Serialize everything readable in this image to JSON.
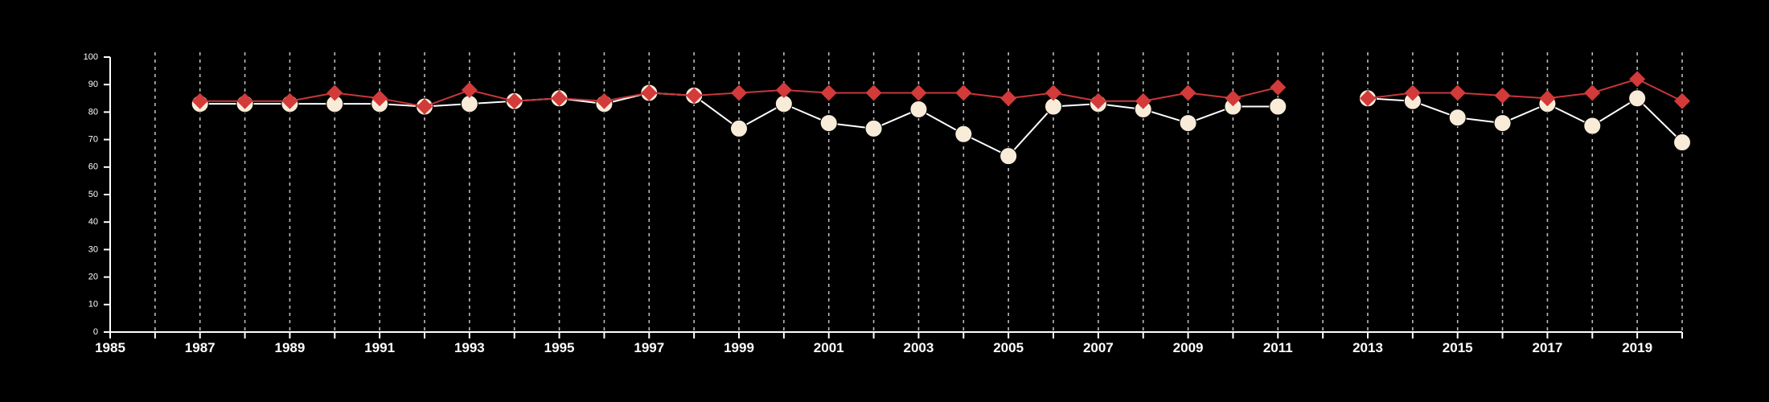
{
  "chart_data": {
    "type": "line",
    "title": "",
    "xlabel": "",
    "ylabel": "",
    "xlim": [
      1985,
      2020
    ],
    "ylim": [
      0,
      100
    ],
    "x_tick_labels": [
      "1985",
      "1987",
      "1989",
      "1991",
      "1993",
      "1995",
      "1997",
      "1999",
      "2001",
      "2003",
      "2005",
      "2007",
      "2009",
      "2011",
      "2013",
      "2015",
      "2017",
      "2019"
    ],
    "y_tick_labels": [
      "0",
      "10",
      "20",
      "30",
      "40",
      "50",
      "60",
      "70",
      "80",
      "90",
      "100"
    ],
    "vertical_gridlines": "dashed, every year",
    "horizontal_gridlines": false,
    "legend": "none",
    "background_color": "#000000",
    "axis_color": "#ffffff",
    "grid_color": "#bbbbbb",
    "series": [
      {
        "marker": "circle",
        "line_color": "#ffffff",
        "marker_fill": "#f8ecd9",
        "x": [
          1987,
          1988,
          1989,
          1990,
          1991,
          1992,
          1993,
          1994,
          1995,
          1996,
          1997,
          1998,
          1999,
          2000,
          2001,
          2002,
          2003,
          2004,
          2005,
          2006,
          2007,
          2008,
          2009,
          2010,
          2011,
          2013,
          2014,
          2015,
          2016,
          2017,
          2018,
          2019,
          2020
        ],
        "values": [
          83,
          83,
          83,
          83,
          83,
          82,
          83,
          84,
          85,
          83,
          87,
          86,
          74,
          83,
          76,
          74,
          81,
          72,
          64,
          82,
          83,
          81,
          76,
          82,
          82,
          85,
          84,
          78,
          76,
          83,
          75,
          85,
          69
        ]
      },
      {
        "marker": "diamond",
        "line_color": "#c8363a",
        "marker_fill": "#d33a3a",
        "x": [
          1987,
          1988,
          1989,
          1990,
          1991,
          1992,
          1993,
          1994,
          1995,
          1996,
          1997,
          1998,
          1999,
          2000,
          2001,
          2002,
          2003,
          2004,
          2005,
          2006,
          2007,
          2008,
          2009,
          2010,
          2011,
          2013,
          2014,
          2015,
          2016,
          2017,
          2018,
          2019,
          2020
        ],
        "values": [
          84,
          84,
          84,
          87,
          85,
          82,
          88,
          84,
          85,
          84,
          87,
          86,
          87,
          88,
          87,
          87,
          87,
          87,
          85,
          87,
          84,
          84,
          87,
          85,
          89,
          85,
          87,
          87,
          86,
          85,
          87,
          92,
          84
        ]
      }
    ]
  }
}
